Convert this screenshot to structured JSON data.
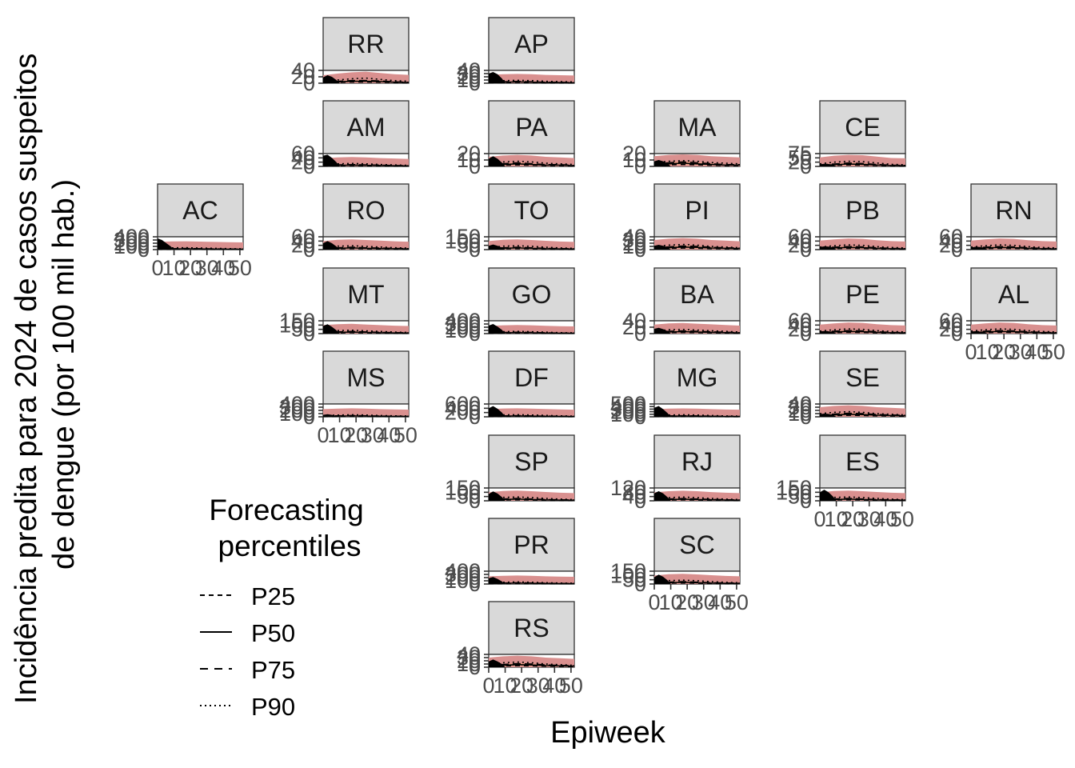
{
  "chart_data": {
    "type": "line",
    "title": "",
    "xlabel": "Epiweek",
    "ylabel_lines": [
      "Incidência predita para 2024 de casos suspeitos",
      "de dengue (por 100 mil hab.)"
    ],
    "xlim": [
      0,
      52
    ],
    "x_ticks": [
      "0",
      "10",
      "20",
      "30",
      "40",
      "50"
    ],
    "legend": {
      "title_lines": [
        "Forecasting",
        "percentiles"
      ],
      "position": "bottom-left",
      "items": [
        {
          "label": "P25",
          "linetype": "dashed"
        },
        {
          "label": "P50",
          "linetype": "solid"
        },
        {
          "label": "P75",
          "linetype": "longdash"
        },
        {
          "label": "P90",
          "linetype": "dotted"
        }
      ]
    },
    "colors": {
      "band_outer": "#d9908f",
      "band_inner": "#f4a582",
      "strip_fill": "#d9d9d9",
      "observed": "#000000"
    },
    "panels": [
      {
        "state": "RR",
        "row": 0,
        "col": 1,
        "y_ticks": [
          "0",
          "20",
          "40"
        ],
        "ylim": [
          0,
          40
        ],
        "p50": [
          2,
          4,
          6,
          6,
          5,
          3,
          2
        ],
        "p90": [
          5,
          10,
          14,
          16,
          12,
          8,
          6
        ],
        "observed": [
          18,
          25,
          20,
          10
        ]
      },
      {
        "state": "AP",
        "row": 0,
        "col": 2,
        "y_ticks": [
          "0",
          "10",
          "20",
          "30",
          "40"
        ],
        "ylim": [
          0,
          40
        ],
        "p50": [
          2,
          3,
          4,
          3,
          2,
          2,
          1
        ],
        "p90": [
          6,
          8,
          9,
          8,
          6,
          5,
          4
        ],
        "observed": [
          30,
          35,
          28,
          15
        ]
      },
      {
        "state": "AM",
        "row": 1,
        "col": 1,
        "y_ticks": [
          "0",
          "20",
          "40",
          "60"
        ],
        "ylim": [
          0,
          60
        ],
        "p50": [
          3,
          5,
          6,
          5,
          4,
          3,
          2
        ],
        "p90": [
          8,
          12,
          14,
          12,
          9,
          7,
          5
        ],
        "observed": [
          50,
          55,
          40,
          20
        ]
      },
      {
        "state": "PA",
        "row": 1,
        "col": 2,
        "y_ticks": [
          "0",
          "10",
          "20"
        ],
        "ylim": [
          0,
          20
        ],
        "p50": [
          2,
          3,
          4,
          3,
          2,
          2,
          1
        ],
        "p90": [
          5,
          7,
          8,
          7,
          5,
          4,
          3
        ],
        "observed": [
          12,
          16,
          12,
          6
        ]
      },
      {
        "state": "MA",
        "row": 1,
        "col": 3,
        "y_ticks": [
          "0",
          "10",
          "20"
        ],
        "ylim": [
          0,
          20
        ],
        "p50": [
          3,
          4,
          5,
          4,
          3,
          2,
          2
        ],
        "p90": [
          6,
          8,
          9,
          8,
          6,
          5,
          4
        ],
        "observed": [
          8,
          10,
          8,
          5
        ]
      },
      {
        "state": "CE",
        "row": 1,
        "col": 4,
        "y_ticks": [
          "0",
          "25",
          "50",
          "75"
        ],
        "ylim": [
          0,
          75
        ],
        "p50": [
          6,
          10,
          14,
          12,
          8,
          5,
          4
        ],
        "p90": [
          15,
          25,
          30,
          28,
          20,
          12,
          10
        ],
        "observed": [
          12,
          15,
          14,
          10
        ]
      },
      {
        "state": "AC",
        "row": 2,
        "col": 0,
        "y_ticks": [
          "0",
          "100",
          "200",
          "300",
          "400"
        ],
        "ylim": [
          0,
          400
        ],
        "p50": [
          15,
          20,
          25,
          20,
          15,
          12,
          10
        ],
        "p90": [
          40,
          55,
          60,
          50,
          40,
          30,
          25
        ],
        "observed": [
          350,
          300,
          200,
          100
        ]
      },
      {
        "state": "RO",
        "row": 2,
        "col": 1,
        "y_ticks": [
          "0",
          "20",
          "40",
          "60"
        ],
        "ylim": [
          0,
          60
        ],
        "p50": [
          4,
          6,
          8,
          6,
          5,
          4,
          3
        ],
        "p90": [
          10,
          16,
          18,
          15,
          12,
          9,
          7
        ],
        "observed": [
          30,
          40,
          30,
          15
        ]
      },
      {
        "state": "TO",
        "row": 2,
        "col": 2,
        "y_ticks": [
          "0",
          "50",
          "100",
          "150"
        ],
        "ylim": [
          0,
          150
        ],
        "p50": [
          10,
          15,
          20,
          15,
          10,
          8,
          6
        ],
        "p90": [
          25,
          40,
          45,
          38,
          28,
          20,
          15
        ],
        "observed": [
          45,
          60,
          45,
          25
        ]
      },
      {
        "state": "PI",
        "row": 2,
        "col": 3,
        "y_ticks": [
          "0",
          "10",
          "20",
          "30",
          "40"
        ],
        "ylim": [
          0,
          40
        ],
        "p50": [
          4,
          6,
          8,
          7,
          5,
          4,
          3
        ],
        "p90": [
          10,
          14,
          16,
          14,
          10,
          8,
          6
        ],
        "observed": [
          12,
          15,
          12,
          8
        ]
      },
      {
        "state": "PB",
        "row": 2,
        "col": 4,
        "y_ticks": [
          "0",
          "20",
          "40",
          "60"
        ],
        "ylim": [
          0,
          60
        ],
        "p50": [
          5,
          8,
          10,
          9,
          6,
          4,
          3
        ],
        "p90": [
          12,
          18,
          22,
          20,
          14,
          10,
          8
        ],
        "observed": [
          12,
          15,
          14,
          10
        ]
      },
      {
        "state": "RN",
        "row": 2,
        "col": 5,
        "y_ticks": [
          "0",
          "20",
          "40",
          "60"
        ],
        "ylim": [
          0,
          60
        ],
        "p50": [
          5,
          8,
          10,
          9,
          6,
          4,
          3
        ],
        "p90": [
          12,
          18,
          22,
          20,
          14,
          10,
          8
        ],
        "observed": [
          10,
          13,
          12,
          9
        ]
      },
      {
        "state": "MT",
        "row": 3,
        "col": 1,
        "y_ticks": [
          "0",
          "50",
          "100",
          "150"
        ],
        "ylim": [
          0,
          150
        ],
        "p50": [
          10,
          14,
          18,
          14,
          10,
          8,
          6
        ],
        "p90": [
          25,
          35,
          40,
          32,
          25,
          18,
          14
        ],
        "observed": [
          90,
          110,
          80,
          40
        ]
      },
      {
        "state": "GO",
        "row": 3,
        "col": 2,
        "y_ticks": [
          "0",
          "100",
          "200",
          "300",
          "400"
        ],
        "ylim": [
          0,
          400
        ],
        "p50": [
          15,
          25,
          30,
          25,
          18,
          12,
          10
        ],
        "p90": [
          40,
          60,
          70,
          60,
          45,
          30,
          25
        ],
        "observed": [
          250,
          300,
          220,
          120
        ]
      },
      {
        "state": "BA",
        "row": 3,
        "col": 3,
        "y_ticks": [
          "0",
          "20",
          "40"
        ],
        "ylim": [
          0,
          40
        ],
        "p50": [
          3,
          5,
          6,
          5,
          4,
          3,
          2
        ],
        "p90": [
          8,
          12,
          13,
          11,
          9,
          7,
          5
        ],
        "observed": [
          15,
          18,
          14,
          8
        ]
      },
      {
        "state": "PE",
        "row": 3,
        "col": 4,
        "y_ticks": [
          "0",
          "20",
          "40",
          "60"
        ],
        "ylim": [
          0,
          60
        ],
        "p50": [
          5,
          8,
          10,
          9,
          6,
          4,
          3
        ],
        "p90": [
          12,
          18,
          22,
          20,
          14,
          10,
          8
        ],
        "observed": [
          10,
          12,
          11,
          8
        ]
      },
      {
        "state": "AL",
        "row": 3,
        "col": 5,
        "y_ticks": [
          "0",
          "20",
          "40",
          "60"
        ],
        "ylim": [
          0,
          60
        ],
        "p50": [
          5,
          8,
          10,
          9,
          6,
          4,
          3
        ],
        "p90": [
          12,
          18,
          22,
          20,
          14,
          10,
          8
        ],
        "observed": [
          8,
          10,
          9,
          7
        ]
      },
      {
        "state": "MS",
        "row": 4,
        "col": 1,
        "y_ticks": [
          "0",
          "100",
          "200",
          "300",
          "400"
        ],
        "ylim": [
          0,
          400
        ],
        "p50": [
          15,
          22,
          28,
          22,
          16,
          12,
          10
        ],
        "p90": [
          40,
          55,
          65,
          55,
          40,
          30,
          25
        ],
        "observed": [
          60,
          80,
          60,
          30
        ]
      },
      {
        "state": "DF",
        "row": 4,
        "col": 2,
        "y_ticks": [
          "0",
          "200",
          "400",
          "600"
        ],
        "ylim": [
          0,
          600
        ],
        "p50": [
          20,
          30,
          40,
          30,
          22,
          16,
          12
        ],
        "p90": [
          60,
          90,
          100,
          85,
          65,
          45,
          35
        ],
        "observed": [
          400,
          500,
          380,
          200
        ]
      },
      {
        "state": "MG",
        "row": 4,
        "col": 3,
        "y_ticks": [
          "0",
          "100",
          "200",
          "300",
          "400",
          "500"
        ],
        "ylim": [
          0,
          500
        ],
        "p50": [
          15,
          25,
          30,
          25,
          18,
          12,
          10
        ],
        "p90": [
          45,
          70,
          80,
          70,
          50,
          35,
          28
        ],
        "observed": [
          350,
          420,
          300,
          150
        ]
      },
      {
        "state": "SE",
        "row": 4,
        "col": 4,
        "y_ticks": [
          "0",
          "10",
          "20",
          "30",
          "40"
        ],
        "ylim": [
          0,
          40
        ],
        "p50": [
          4,
          6,
          8,
          7,
          5,
          4,
          3
        ],
        "p90": [
          10,
          14,
          16,
          14,
          10,
          8,
          6
        ],
        "observed": [
          8,
          10,
          9,
          6
        ]
      },
      {
        "state": "SP",
        "row": 5,
        "col": 2,
        "y_ticks": [
          "0",
          "50",
          "100",
          "150"
        ],
        "ylim": [
          0,
          150
        ],
        "p50": [
          10,
          15,
          20,
          15,
          10,
          8,
          6
        ],
        "p90": [
          25,
          40,
          45,
          38,
          28,
          20,
          15
        ],
        "observed": [
          80,
          110,
          85,
          45
        ]
      },
      {
        "state": "RJ",
        "row": 5,
        "col": 3,
        "y_ticks": [
          "0",
          "40",
          "80",
          "120"
        ],
        "ylim": [
          0,
          120
        ],
        "p50": [
          8,
          12,
          15,
          12,
          9,
          7,
          5
        ],
        "p90": [
          20,
          30,
          35,
          30,
          22,
          16,
          12
        ],
        "observed": [
          70,
          90,
          70,
          35
        ]
      },
      {
        "state": "ES",
        "row": 5,
        "col": 4,
        "y_ticks": [
          "0",
          "50",
          "100",
          "150"
        ],
        "ylim": [
          0,
          150
        ],
        "p50": [
          10,
          15,
          20,
          15,
          10,
          8,
          6
        ],
        "p90": [
          25,
          40,
          45,
          38,
          28,
          20,
          15
        ],
        "observed": [
          100,
          130,
          100,
          50
        ]
      },
      {
        "state": "PR",
        "row": 6,
        "col": 2,
        "y_ticks": [
          "0",
          "100",
          "200",
          "300",
          "400"
        ],
        "ylim": [
          0,
          400
        ],
        "p50": [
          15,
          22,
          28,
          22,
          16,
          12,
          10
        ],
        "p90": [
          40,
          55,
          65,
          55,
          40,
          30,
          25
        ],
        "observed": [
          180,
          220,
          160,
          80
        ]
      },
      {
        "state": "SC",
        "row": 6,
        "col": 3,
        "y_ticks": [
          "0",
          "50",
          "100",
          "150"
        ],
        "ylim": [
          0,
          150
        ],
        "p50": [
          10,
          15,
          20,
          15,
          10,
          8,
          6
        ],
        "p90": [
          25,
          40,
          45,
          38,
          28,
          20,
          15
        ],
        "observed": [
          80,
          110,
          85,
          45
        ]
      },
      {
        "state": "RS",
        "row": 7,
        "col": 2,
        "y_ticks": [
          "0",
          "10",
          "20",
          "30",
          "40"
        ],
        "ylim": [
          0,
          40
        ],
        "p50": [
          4,
          6,
          8,
          7,
          5,
          4,
          3
        ],
        "p90": [
          10,
          14,
          16,
          14,
          10,
          8,
          6
        ],
        "observed": [
          18,
          24,
          18,
          10
        ]
      }
    ],
    "x_axis_panels": [
      "AC",
      "MS",
      "RS",
      "SC",
      "ES",
      "AL"
    ]
  }
}
